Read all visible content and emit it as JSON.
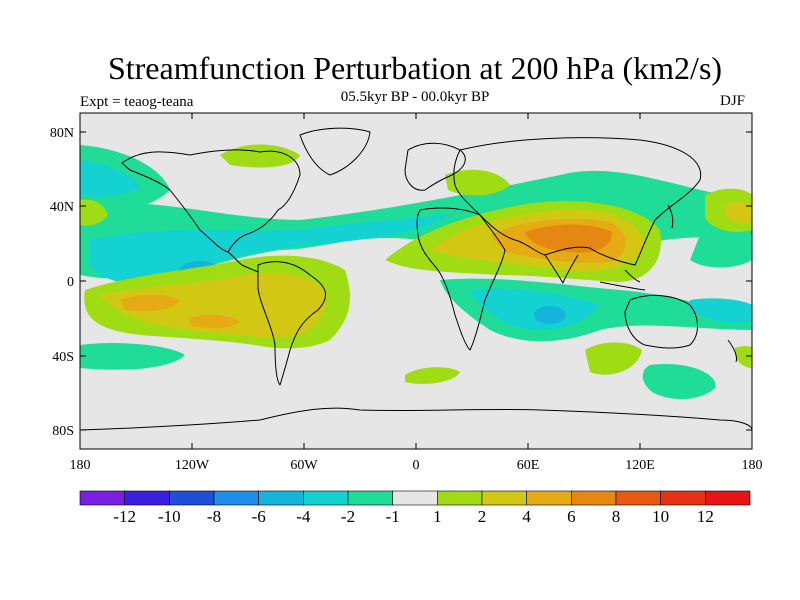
{
  "header": {
    "title": "Streamfunction Perturbation at 200 hPa (km2/s)",
    "expt": "Expt = teaog-teana",
    "period": "05.5kyr BP - 00.0kyr BP",
    "season": "DJF"
  },
  "axes": {
    "lat_ticks": [
      "80N",
      "40N",
      "0",
      "40S",
      "80S"
    ],
    "lon_ticks": [
      "180",
      "120W",
      "60W",
      "0",
      "60E",
      "120E",
      "180"
    ]
  },
  "colorbar": {
    "colors": [
      "#7b1fe0",
      "#3a1fe0",
      "#1f4fd6",
      "#1f8ee6",
      "#14b4dc",
      "#14d2d2",
      "#1fdc99",
      "#e6e6e6",
      "#9fdc14",
      "#d2c814",
      "#e6aa14",
      "#e68714",
      "#e65a14",
      "#e63214",
      "#e61414"
    ],
    "labels": [
      "-12",
      "-10",
      "-8",
      "-6",
      "-4",
      "-2",
      "-1",
      "1",
      "2",
      "4",
      "6",
      "8",
      "10",
      "12"
    ]
  },
  "colors": {
    "neutral": "#e6e6e6",
    "coastline": "#000000"
  }
}
